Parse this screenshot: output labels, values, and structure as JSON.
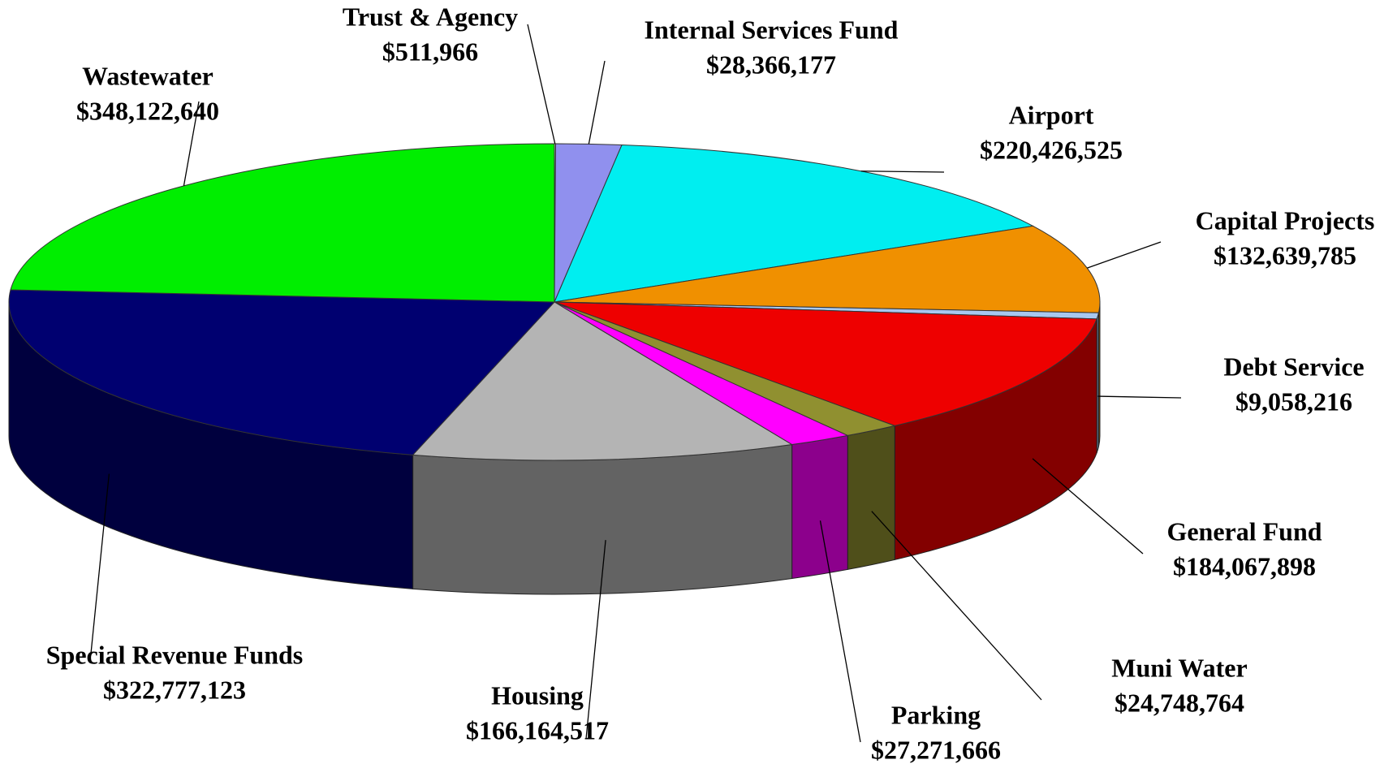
{
  "chart_data": {
    "type": "pie",
    "categories": [
      "Trust & Agency",
      "Internal Services Fund",
      "Airport",
      "Capital Projects",
      "Debt Service",
      "General Fund",
      "Muni Water",
      "Parking",
      "Housing",
      "Special Revenue Funds",
      "Wastewater"
    ],
    "values": [
      511966,
      28366177,
      220426525,
      132639785,
      9058216,
      184067898,
      24748764,
      27271666,
      166164517,
      322777123,
      348122640
    ],
    "value_labels": [
      "$511,966",
      "$28,366,177",
      "$220,426,525",
      "$132,639,785",
      "$9,058,216",
      "$184,067,898",
      "$24,748,764",
      "$27,271,666",
      "$166,164,517",
      "$322,777,123",
      "$348,122,640"
    ],
    "colors": [
      "#f4f4f4",
      "#9090ee",
      "#00eef0",
      "#f09000",
      "#a8c8f0",
      "#ee0000",
      "#909030",
      "#ff00ff",
      "#b4b4b4",
      "#000070",
      "#00ee00"
    ]
  }
}
